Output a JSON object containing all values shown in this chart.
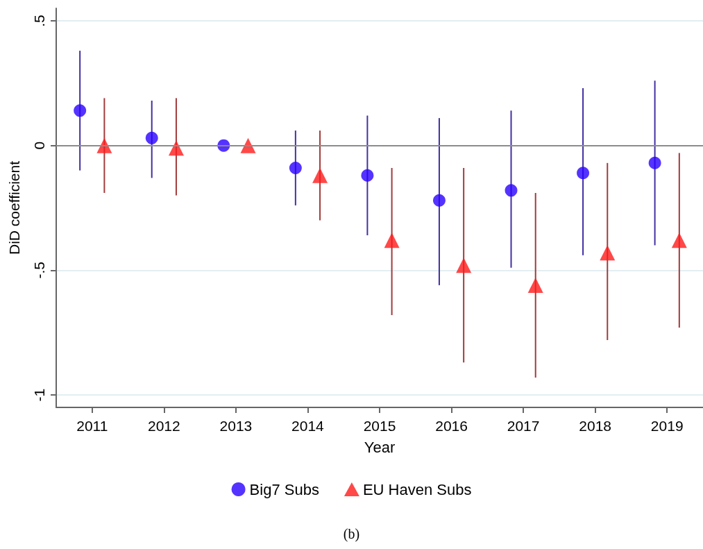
{
  "chart_data": {
    "type": "scatter",
    "xlabel": "Year",
    "ylabel": "DiD coefficient",
    "xlim": [
      2010.5,
      2019.5
    ],
    "xticks": [
      2011,
      2012,
      2013,
      2014,
      2015,
      2016,
      2017,
      2018,
      2019
    ],
    "ylim": [
      -1.05,
      0.55
    ],
    "yticks": [
      {
        "value": 0.5,
        "label": ".5"
      },
      0,
      {
        "value": -0.5,
        "label": "-.5"
      },
      -1
    ],
    "grid": "y",
    "legend": "bottom",
    "ref_lines": [
      {
        "axis": "y",
        "value": 0,
        "label": null,
        "color": "#8c8c8c"
      }
    ],
    "annotations": [
      "(b)"
    ],
    "series": [
      {
        "name": "Big7 Subs",
        "color": "#2a00ff",
        "marker": "circle",
        "x": [
          2010.83,
          2011.83,
          2012.83,
          2013.83,
          2014.83,
          2015.83,
          2016.83,
          2017.83,
          2018.83
        ],
        "values": [
          0.14,
          0.03,
          0,
          -0.09,
          -0.12,
          -0.22,
          -0.18,
          -0.11,
          -0.07
        ],
        "errors": [
          [
            -0.1,
            0.38
          ],
          [
            -0.13,
            0.18
          ],
          null,
          [
            -0.24,
            0.06
          ],
          [
            -0.36,
            0.12
          ],
          [
            -0.56,
            0.11
          ],
          [
            -0.49,
            0.14
          ],
          [
            -0.44,
            0.23
          ],
          [
            -0.4,
            0.26
          ]
        ]
      },
      {
        "name": "EU Haven Subs",
        "color": "#ff1a1a",
        "marker": "triangle",
        "x": [
          2011.17,
          2012.17,
          2013.17,
          2014.17,
          2015.17,
          2016.17,
          2017.17,
          2018.17,
          2019.17
        ],
        "values": [
          0,
          -0.01,
          0,
          -0.12,
          -0.38,
          -0.48,
          -0.56,
          -0.43,
          -0.38
        ],
        "errors": [
          [
            -0.19,
            0.19
          ],
          [
            -0.2,
            0.19
          ],
          null,
          [
            -0.3,
            0.06
          ],
          [
            -0.68,
            -0.09
          ],
          [
            -0.87,
            -0.09
          ],
          [
            -0.93,
            -0.19
          ],
          [
            -0.78,
            -0.07
          ],
          [
            -0.73,
            -0.03
          ]
        ]
      }
    ]
  }
}
